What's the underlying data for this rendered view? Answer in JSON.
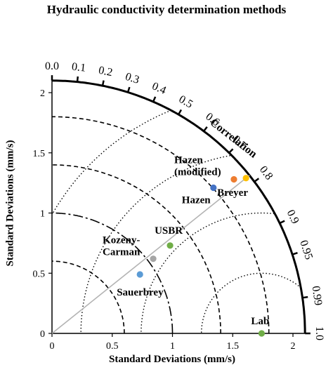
{
  "chart_data": {
    "type": "taylor-diagram",
    "title": "Hydraulic conductivity determination methods",
    "xlabel": "Standard Deviations (mm/s)",
    "ylabel": "Standard Deviations (mm/s)",
    "correlation_label": "Correlation",
    "std_range": [
      0,
      2.1
    ],
    "std_ticks": [
      "0",
      "0.5",
      "1",
      "1.5",
      "2"
    ],
    "correlation_ticks": [
      "0.0",
      "0.1",
      "0.2",
      "0.3",
      "0.4",
      "0.5",
      "0.6",
      "0.7",
      "0.8",
      "0.9",
      "0.95",
      "0.99",
      "1.0"
    ],
    "reference_std": 1.74,
    "points": [
      {
        "name": "Lab",
        "std_x": 1.74,
        "std_y": 0.0,
        "color": "#70ad47"
      },
      {
        "name": "Hazen",
        "std_x": 1.34,
        "std_y": 1.21,
        "color": "#4472c4"
      },
      {
        "name": "Hazen (modified)",
        "std_x": 1.51,
        "std_y": 1.28,
        "color": "#ed7d31"
      },
      {
        "name": "Breyer",
        "std_x": 1.61,
        "std_y": 1.29,
        "color": "#ffc000"
      },
      {
        "name": "USBR",
        "std_x": 0.98,
        "std_y": 0.73,
        "color": "#70ad47"
      },
      {
        "name": "Kozeny-Carman",
        "std_x": 0.84,
        "std_y": 0.62,
        "color": "#a5a5a5"
      },
      {
        "name": "Sauerbrey",
        "std_x": 0.73,
        "std_y": 0.49,
        "color": "#5b9bd5"
      }
    ],
    "labels": {
      "Lab": "Lab",
      "Hazen": "Hazen",
      "Hazen (modified)": [
        "Hazen",
        "(modified)"
      ],
      "Breyer": "Breyer",
      "USBR": "USBR",
      "Kozeny-Carman": [
        "Kozeny-",
        "Carman"
      ],
      "Sauerbrey": "Sauerbrey"
    },
    "std_arcs_dashed": [
      0.6,
      1.4,
      1.8
    ],
    "std_arcs_longdash": [
      1.0
    ],
    "rms_arcs_dotted": [
      0.5,
      1.0,
      1.5,
      2.0
    ],
    "grid": false
  }
}
